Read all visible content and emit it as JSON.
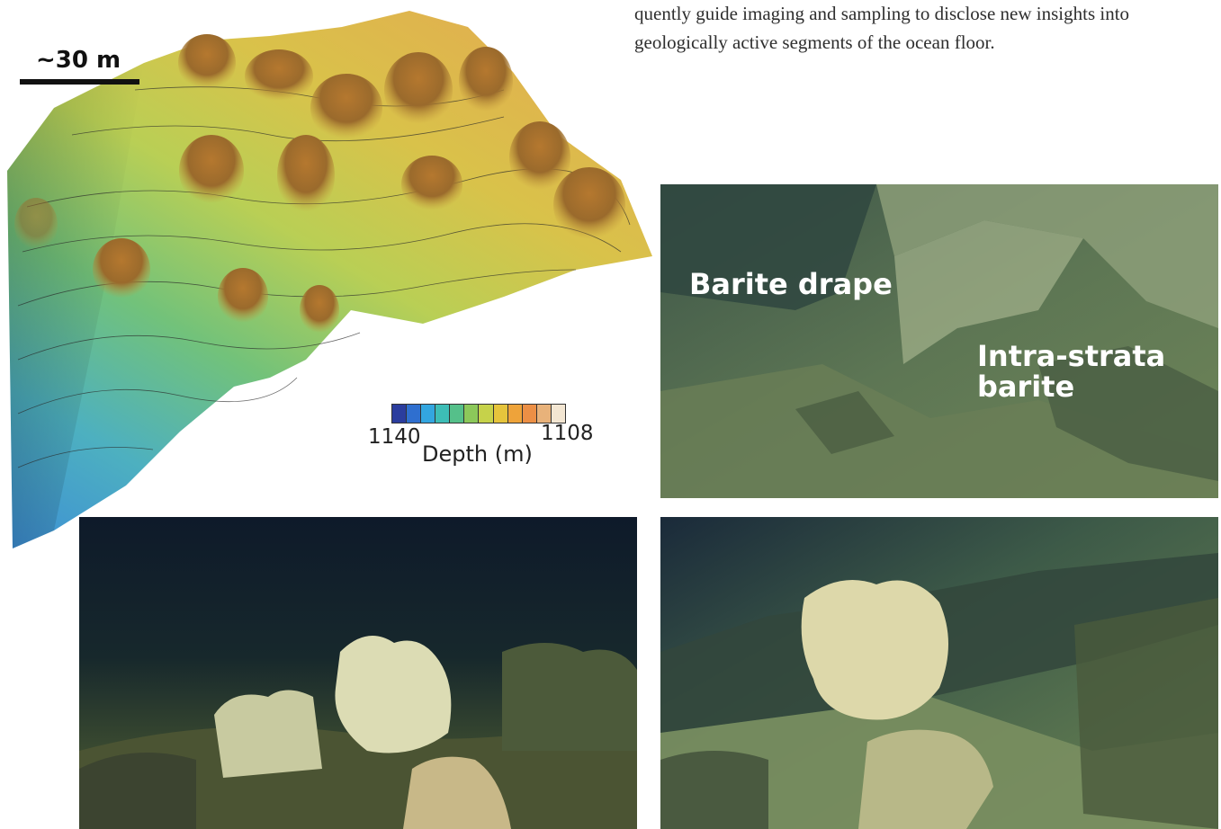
{
  "text": {
    "line1": "quently guide imaging and sampling to disclose new insights into",
    "line2": "geologically active segments of the ocean floor."
  },
  "map": {
    "scale_label": "~30 m",
    "colorbar": {
      "min_label": "1140",
      "max_label": "1108",
      "title": "Depth (m)",
      "colors": [
        "#2b3d9e",
        "#2f6fcf",
        "#33a6e0",
        "#3dbdb6",
        "#55c08a",
        "#8cc85a",
        "#c6d24a",
        "#e6c43c",
        "#eea33a",
        "#ec8f45",
        "#e8b27a",
        "#f3e6d2"
      ]
    }
  },
  "photos": {
    "top_right": {
      "label_1": "Barite drape",
      "label_2_line1": "Intra-strata",
      "label_2_line2": "barite"
    }
  }
}
